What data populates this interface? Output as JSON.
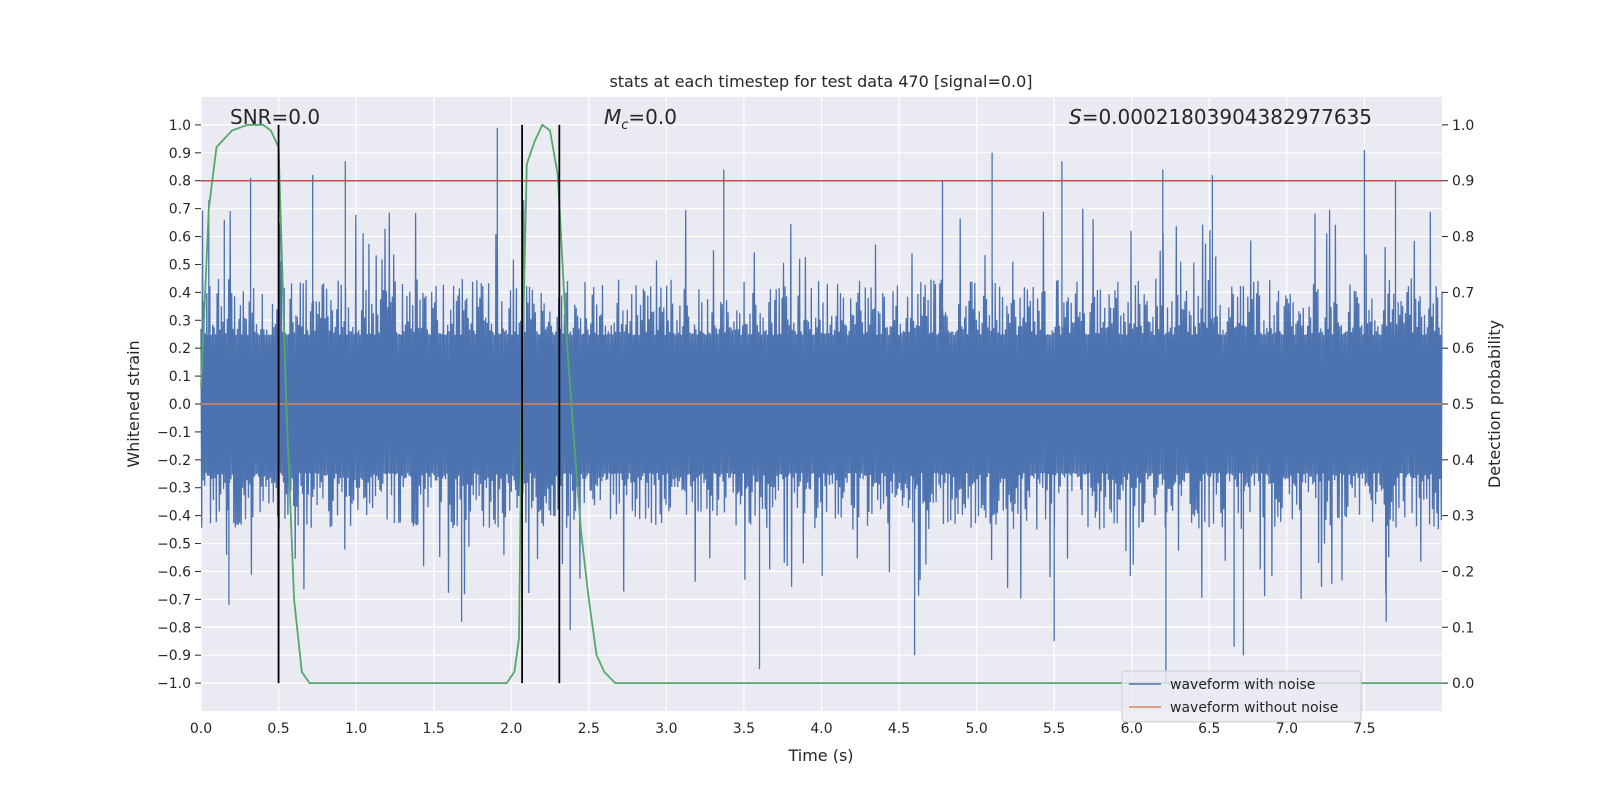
{
  "chart_data": {
    "type": "line",
    "title": "stats at each timestep for test data 470 [signal=0.0]",
    "xlabel": "Time (s)",
    "ylabel": "Whitened strain",
    "ylabel_right": "Detection probability",
    "xlim": [
      0,
      8
    ],
    "ylim": [
      -1.1,
      1.1
    ],
    "ylim_right": [
      -0.05,
      1.05
    ],
    "grid": true,
    "x_ticks": [
      "0.0",
      "0.5",
      "1.0",
      "1.5",
      "2.0",
      "2.5",
      "3.0",
      "3.5",
      "4.0",
      "4.5",
      "5.0",
      "5.5",
      "6.0",
      "6.5",
      "7.0",
      "7.5"
    ],
    "y_ticks": [
      "1.0",
      "0.9",
      "0.8",
      "0.7",
      "0.6",
      "0.5",
      "0.4",
      "0.3",
      "0.2",
      "0.1",
      "0.0",
      "-0.1",
      "-0.2",
      "-0.3",
      "-0.4",
      "-0.5",
      "-0.6",
      "-0.7",
      "-0.8",
      "-0.9",
      "-1.0"
    ],
    "y_ticks_right": [
      "1.0",
      "0.9",
      "0.8",
      "0.7",
      "0.6",
      "0.5",
      "0.4",
      "0.3",
      "0.2",
      "0.1",
      "0.0"
    ],
    "annotations": {
      "snr": "SNR=0.0",
      "mc": "=0.0",
      "mc_symbol": "M",
      "mc_sub": "c",
      "s_value": "=0.00021803904382977635",
      "s_symbol": "S"
    },
    "threshold_right": 0.9,
    "vertical_markers_x": [
      0.5,
      2.07,
      2.31
    ],
    "noise_envelope": {
      "typical_pos_peak": 0.45,
      "typical_neg_peak": -0.45,
      "spikes": [
        {
          "x": 0.05,
          "y": 0.73
        },
        {
          "x": 0.15,
          "y": 0.66
        },
        {
          "x": 0.32,
          "y": 0.81
        },
        {
          "x": 0.72,
          "y": 0.82
        },
        {
          "x": 0.93,
          "y": 0.87
        },
        {
          "x": 1.91,
          "y": 0.99
        },
        {
          "x": 2.08,
          "y": 0.73
        },
        {
          "x": 2.31,
          "y": 0.62
        },
        {
          "x": 3.37,
          "y": 0.84
        },
        {
          "x": 4.78,
          "y": 0.8
        },
        {
          "x": 5.1,
          "y": 0.9
        },
        {
          "x": 5.55,
          "y": 0.87
        },
        {
          "x": 6.2,
          "y": 0.84
        },
        {
          "x": 6.52,
          "y": 0.82
        },
        {
          "x": 7.5,
          "y": 0.91
        },
        {
          "x": 7.7,
          "y": 0.8
        },
        {
          "x": 0.18,
          "y": -0.72
        },
        {
          "x": 1.68,
          "y": -0.78
        },
        {
          "x": 3.6,
          "y": -0.95
        },
        {
          "x": 4.6,
          "y": -0.9
        },
        {
          "x": 5.5,
          "y": -0.85
        },
        {
          "x": 6.22,
          "y": -1.0
        },
        {
          "x": 6.72,
          "y": -0.9
        },
        {
          "x": 6.66,
          "y": -0.87
        },
        {
          "x": 7.64,
          "y": -0.78
        },
        {
          "x": 2.38,
          "y": -0.81
        }
      ]
    },
    "series": [
      {
        "name": "waveform with noise",
        "color": "#4c72b0",
        "kind": "noise"
      },
      {
        "name": "waveform without noise",
        "color": "#dd8452",
        "values_constant": 0.0
      },
      {
        "color": "#55a868",
        "axis": "right",
        "x": [
          0.0,
          0.05,
          0.1,
          0.2,
          0.3,
          0.4,
          0.45,
          0.5,
          0.55,
          0.6,
          0.65,
          0.7,
          1.0,
          1.4,
          1.5,
          1.8,
          1.97,
          2.02,
          2.05,
          2.07,
          2.1,
          2.15,
          2.2,
          2.25,
          2.3,
          2.35,
          2.4,
          2.45,
          2.5,
          2.55,
          2.6,
          2.67,
          3.0,
          8.0
        ],
        "y": [
          0.53,
          0.85,
          0.96,
          0.99,
          1.0,
          1.0,
          0.99,
          0.96,
          0.5,
          0.15,
          0.02,
          0.0,
          0.0,
          0.0,
          0.0,
          0.0,
          0.0,
          0.02,
          0.08,
          0.55,
          0.93,
          0.97,
          1.0,
          0.99,
          0.91,
          0.65,
          0.45,
          0.27,
          0.15,
          0.05,
          0.02,
          0.0,
          0.0,
          0.0
        ]
      }
    ],
    "colors": {
      "background": "#eaeaf2",
      "grid": "#ffffff",
      "threshold": "#c44e52",
      "marker": "#000000"
    },
    "legend": {
      "placement": "lower-right",
      "entries": [
        "waveform with noise",
        "waveform without noise"
      ]
    }
  }
}
